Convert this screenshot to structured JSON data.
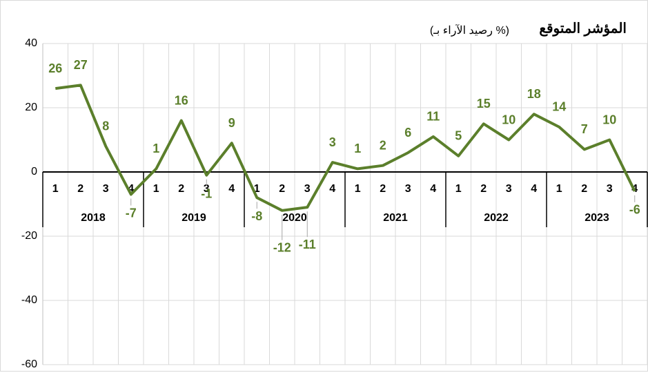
{
  "chart_data": {
    "type": "line",
    "title": "المؤشر المتوقع",
    "subtitle": "(رصيد الآراء بـ %)",
    "categories": [
      "1",
      "2",
      "3",
      "4",
      "1",
      "2",
      "3",
      "4",
      "1",
      "2",
      "3",
      "4",
      "1",
      "2",
      "3",
      "4",
      "1",
      "2",
      "3",
      "4",
      "1",
      "2",
      "3",
      "4"
    ],
    "years": [
      "2018",
      "2019",
      "2020",
      "2021",
      "2022",
      "2023"
    ],
    "series": [
      {
        "name": null,
        "color": "#5b7f2b",
        "values": [
          26,
          27,
          8,
          -7,
          1,
          16,
          -1,
          9,
          -8,
          -12,
          -11,
          3,
          1,
          2,
          6,
          11,
          5,
          15,
          10,
          18,
          14,
          7,
          10,
          -6
        ]
      }
    ],
    "ylim": [
      -60,
      40
    ],
    "yticks": [
      -60,
      -40,
      -20,
      0,
      20,
      40
    ],
    "grid": true
  }
}
